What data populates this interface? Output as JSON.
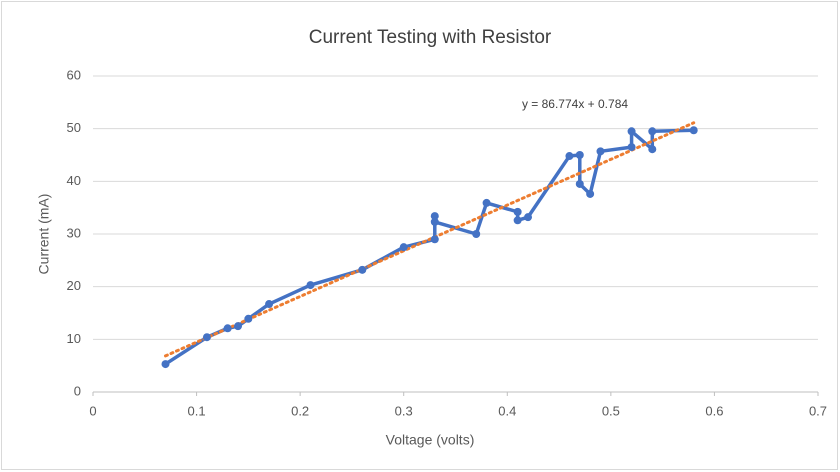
{
  "chart_data": {
    "type": "scatter",
    "title": "Current Testing with Resistor",
    "x_label": "Voltage (volts)",
    "y_label": "Current (mA)",
    "series": [
      {
        "name": "Current",
        "color": "#4472c4",
        "x": [
          0.07,
          0.11,
          0.13,
          0.14,
          0.15,
          0.17,
          0.21,
          0.26,
          0.3,
          0.33,
          0.33,
          0.33,
          0.37,
          0.38,
          0.41,
          0.41,
          0.42,
          0.46,
          0.47,
          0.47,
          0.48,
          0.49,
          0.52,
          0.52,
          0.54,
          0.54,
          0.58
        ],
        "values": [
          5.3,
          10.4,
          12.1,
          12.5,
          13.9,
          16.7,
          20.3,
          23.2,
          27.5,
          29.0,
          33.4,
          32.3,
          30.0,
          35.9,
          34.2,
          32.6,
          33.2,
          44.8,
          45.0,
          39.5,
          37.6,
          45.7,
          46.5,
          49.5,
          46.1,
          49.5,
          49.7
        ]
      }
    ],
    "trendline": {
      "label": "y = 86.774x + 0.784",
      "slope": 86.774,
      "intercept": 0.784,
      "color": "#ed7d31"
    },
    "xlim": [
      0,
      0.7
    ],
    "xticks": [
      0,
      0.1,
      0.2,
      0.3,
      0.4,
      0.5,
      0.6,
      0.7
    ],
    "ylim": [
      0,
      60
    ],
    "yticks": [
      0,
      10,
      20,
      30,
      40,
      50,
      60
    ],
    "grid": true
  }
}
